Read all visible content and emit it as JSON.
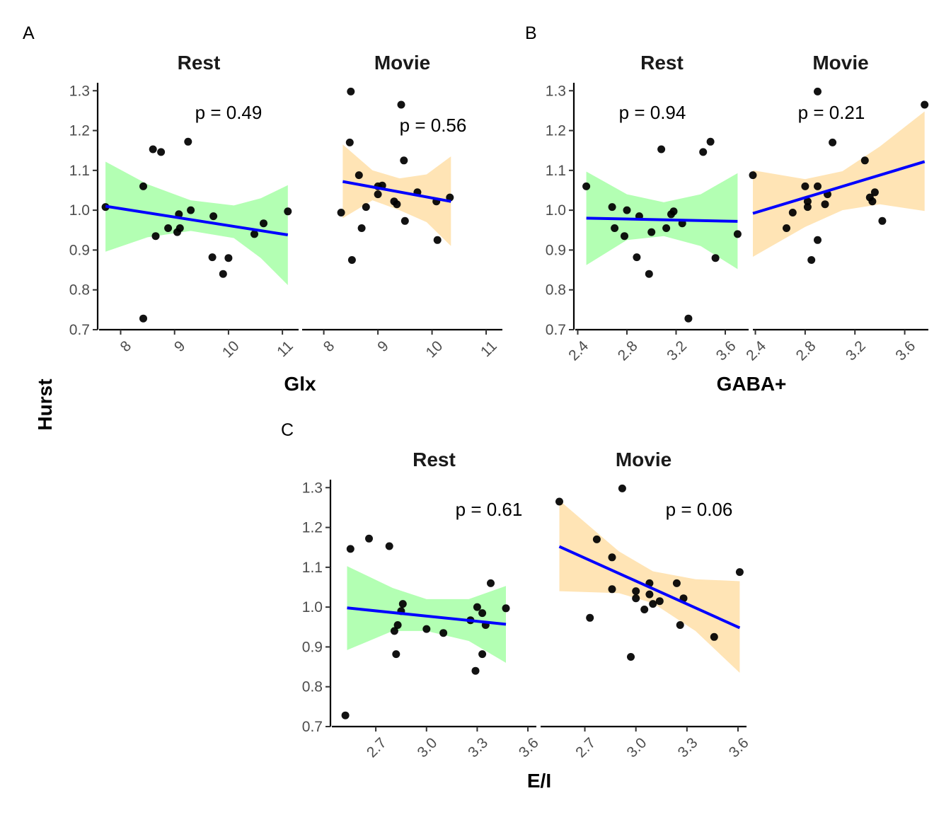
{
  "figure": {
    "y_axis_title": "Hurst",
    "colors": {
      "rest_band": "#b3ffb3",
      "movie_band": "#ffe4b5",
      "fit_line": "#0000ff",
      "points": "#000000"
    }
  },
  "chart_data": [
    {
      "type": "scatter",
      "tag": "A",
      "xlabel": "Glx",
      "ylabel": "Hurst",
      "ylim": [
        0.7,
        1.32
      ],
      "yticks": [
        0.7,
        0.8,
        0.9,
        1.0,
        1.1,
        1.2,
        1.3
      ],
      "ytick_labels": [
        "0.7",
        "0.8",
        "0.9",
        "1.0",
        "1.1",
        "1.2",
        "1.3"
      ],
      "xlim": [
        7.6,
        11.3
      ],
      "xticks": [
        8,
        9,
        10,
        11
      ],
      "xtick_labels": [
        "8",
        "9",
        "10",
        "11"
      ],
      "xtick_rotated": true,
      "grid": false,
      "facets": [
        {
          "name": "Rest",
          "pvalue": "p =  0.49",
          "fit": {
            "x": [
              7.72,
              11.1
            ],
            "y": [
              1.01,
              0.938
            ]
          },
          "band": {
            "x": [
              7.72,
              8.5,
              9.3,
              10.1,
              10.6,
              11.1
            ],
            "upper": [
              1.122,
              1.065,
              1.025,
              1.012,
              1.03,
              1.063
            ],
            "lower": [
              0.896,
              0.932,
              0.948,
              0.93,
              0.88,
              0.812
            ]
          },
          "points": [
            [
              7.72,
              1.008
            ],
            [
              8.42,
              1.06
            ],
            [
              8.42,
              0.728
            ],
            [
              8.6,
              1.153
            ],
            [
              8.65,
              0.935
            ],
            [
              8.75,
              1.146
            ],
            [
              8.88,
              0.955
            ],
            [
              9.05,
              0.945
            ],
            [
              9.08,
              0.99
            ],
            [
              9.1,
              0.955
            ],
            [
              9.25,
              1.172
            ],
            [
              9.3,
              1.0
            ],
            [
              9.72,
              0.985
            ],
            [
              9.7,
              0.882
            ],
            [
              9.9,
              0.84
            ],
            [
              10.0,
              0.88
            ],
            [
              10.48,
              0.94
            ],
            [
              10.65,
              0.967
            ],
            [
              11.1,
              0.997
            ]
          ]
        },
        {
          "name": "Movie",
          "pvalue": "p =  0.56",
          "fit": {
            "x": [
              8.35,
              10.35
            ],
            "y": [
              1.072,
              1.022
            ]
          },
          "band": {
            "x": [
              8.35,
              8.9,
              9.4,
              9.9,
              10.35
            ],
            "upper": [
              1.165,
              1.1,
              1.08,
              1.09,
              1.135
            ],
            "lower": [
              0.98,
              1.025,
              1.0,
              0.97,
              0.91
            ]
          },
          "points": [
            [
              8.32,
              0.994
            ],
            [
              8.48,
              1.17
            ],
            [
              8.5,
              1.298
            ],
            [
              8.52,
              0.875
            ],
            [
              8.65,
              1.088
            ],
            [
              8.7,
              0.955
            ],
            [
              8.78,
              1.008
            ],
            [
              9.0,
              1.04
            ],
            [
              9.0,
              1.06
            ],
            [
              9.08,
              1.062
            ],
            [
              9.3,
              1.022
            ],
            [
              9.35,
              1.015
            ],
            [
              9.43,
              1.265
            ],
            [
              9.48,
              1.125
            ],
            [
              9.5,
              0.973
            ],
            [
              9.73,
              1.045
            ],
            [
              10.08,
              1.022
            ],
            [
              10.1,
              0.925
            ],
            [
              10.33,
              1.032
            ]
          ]
        }
      ]
    },
    {
      "type": "scatter",
      "tag": "B",
      "xlabel": "GABA+",
      "ylabel": "Hurst",
      "ylim": [
        0.7,
        1.32
      ],
      "yticks": [
        0.7,
        0.8,
        0.9,
        1.0,
        1.1,
        1.2,
        1.3
      ],
      "ytick_labels": [
        "0.7",
        "0.8",
        "0.9",
        "1.0",
        "1.1",
        "1.2",
        "1.3"
      ],
      "xlim": [
        2.38,
        3.79
      ],
      "xticks": [
        2.4,
        2.8,
        3.2,
        3.6
      ],
      "xtick_labels": [
        "2.4",
        "2.8",
        "3.2",
        "3.6"
      ],
      "xtick_rotated": true,
      "grid": false,
      "facets": [
        {
          "name": "Rest",
          "pvalue": "p =  0.94",
          "fit": {
            "x": [
              2.47,
              3.7
            ],
            "y": [
              0.98,
              0.972
            ]
          },
          "band": {
            "x": [
              2.47,
              2.8,
              3.1,
              3.4,
              3.7
            ],
            "upper": [
              1.097,
              1.04,
              1.02,
              1.04,
              1.093
            ],
            "lower": [
              0.862,
              0.925,
              0.935,
              0.91,
              0.852
            ]
          },
          "points": [
            [
              2.47,
              1.06
            ],
            [
              2.68,
              1.008
            ],
            [
              2.7,
              0.955
            ],
            [
              2.78,
              0.935
            ],
            [
              2.8,
              1.0
            ],
            [
              2.88,
              0.882
            ],
            [
              2.9,
              0.985
            ],
            [
              2.98,
              0.84
            ],
            [
              3.0,
              0.945
            ],
            [
              3.08,
              1.153
            ],
            [
              3.12,
              0.955
            ],
            [
              3.16,
              0.99
            ],
            [
              3.18,
              0.997
            ],
            [
              3.25,
              0.967
            ],
            [
              3.3,
              0.728
            ],
            [
              3.42,
              1.146
            ],
            [
              3.48,
              1.172
            ],
            [
              3.52,
              0.88
            ],
            [
              3.7,
              0.94
            ]
          ]
        },
        {
          "name": "Movie",
          "pvalue": "p =  0.21",
          "fit": {
            "x": [
              2.38,
              3.76
            ],
            "y": [
              0.992,
              1.122
            ]
          },
          "band": {
            "x": [
              2.38,
              2.8,
              3.1,
              3.4,
              3.76
            ],
            "upper": [
              1.1,
              1.078,
              1.098,
              1.16,
              1.248
            ],
            "lower": [
              0.883,
              0.958,
              1.0,
              1.015,
              0.998
            ]
          },
          "points": [
            [
              2.38,
              1.088
            ],
            [
              2.65,
              0.955
            ],
            [
              2.7,
              0.994
            ],
            [
              2.8,
              1.06
            ],
            [
              2.82,
              1.022
            ],
            [
              2.82,
              1.008
            ],
            [
              2.85,
              0.875
            ],
            [
              2.9,
              1.06
            ],
            [
              2.9,
              0.925
            ],
            [
              2.9,
              1.298
            ],
            [
              2.96,
              1.015
            ],
            [
              2.98,
              1.04
            ],
            [
              3.02,
              1.17
            ],
            [
              3.28,
              1.125
            ],
            [
              3.32,
              1.032
            ],
            [
              3.34,
              1.022
            ],
            [
              3.36,
              1.045
            ],
            [
              3.42,
              0.973
            ],
            [
              3.76,
              1.265
            ]
          ]
        }
      ]
    },
    {
      "type": "scatter",
      "tag": "C",
      "xlabel": "E/I",
      "ylabel": "",
      "ylim": [
        0.7,
        1.32
      ],
      "yticks": [
        0.7,
        0.8,
        0.9,
        1.0,
        1.1,
        1.2,
        1.3
      ],
      "ytick_labels": [
        "0.7",
        "0.8",
        "0.9",
        "1.0",
        "1.1",
        "1.2",
        "1.3"
      ],
      "xlim": [
        2.44,
        3.65
      ],
      "xticks": [
        2.7,
        3.0,
        3.3,
        3.6
      ],
      "xtick_labels": [
        "2.7",
        "3.0",
        "3.3",
        "3.6"
      ],
      "xtick_rotated": true,
      "grid": false,
      "facets": [
        {
          "name": "Rest",
          "pvalue": "p =  0.61",
          "fit": {
            "x": [
              2.53,
              3.47
            ],
            "y": [
              0.998,
              0.957
            ]
          },
          "band": {
            "x": [
              2.53,
              2.8,
              3.0,
              3.25,
              3.47
            ],
            "upper": [
              1.103,
              1.048,
              1.02,
              1.02,
              1.053
            ],
            "lower": [
              0.892,
              0.94,
              0.94,
              0.915,
              0.86
            ]
          },
          "points": [
            [
              2.52,
              0.728
            ],
            [
              2.55,
              1.146
            ],
            [
              2.66,
              1.172
            ],
            [
              2.78,
              1.153
            ],
            [
              2.81,
              0.94
            ],
            [
              2.82,
              0.882
            ],
            [
              2.83,
              0.955
            ],
            [
              2.85,
              0.99
            ],
            [
              2.86,
              1.008
            ],
            [
              3.0,
              0.945
            ],
            [
              3.1,
              0.935
            ],
            [
              3.26,
              0.967
            ],
            [
              3.29,
              0.84
            ],
            [
              3.3,
              1.0
            ],
            [
              3.33,
              0.882
            ],
            [
              3.33,
              0.985
            ],
            [
              3.35,
              0.955
            ],
            [
              3.38,
              1.06
            ],
            [
              3.47,
              0.997
            ]
          ]
        },
        {
          "name": "Movie",
          "pvalue": "p =  0.06",
          "fit": {
            "x": [
              2.55,
              3.61
            ],
            "y": [
              1.152,
              0.948
            ]
          },
          "band": {
            "x": [
              2.55,
              2.9,
              3.1,
              3.35,
              3.61
            ],
            "upper": [
              1.268,
              1.14,
              1.09,
              1.07,
              1.065
            ],
            "lower": [
              1.04,
              1.035,
              1.01,
              0.94,
              0.835
            ]
          },
          "points": [
            [
              2.55,
              1.265
            ],
            [
              2.73,
              0.973
            ],
            [
              2.77,
              1.17
            ],
            [
              2.86,
              1.125
            ],
            [
              2.86,
              1.045
            ],
            [
              2.92,
              1.298
            ],
            [
              2.97,
              0.875
            ],
            [
              3.0,
              1.04
            ],
            [
              3.0,
              1.022
            ],
            [
              3.05,
              0.994
            ],
            [
              3.08,
              1.06
            ],
            [
              3.08,
              1.032
            ],
            [
              3.1,
              1.008
            ],
            [
              3.14,
              1.015
            ],
            [
              3.24,
              1.06
            ],
            [
              3.26,
              0.955
            ],
            [
              3.28,
              1.022
            ],
            [
              3.46,
              0.925
            ],
            [
              3.61,
              1.088
            ]
          ]
        }
      ]
    }
  ]
}
